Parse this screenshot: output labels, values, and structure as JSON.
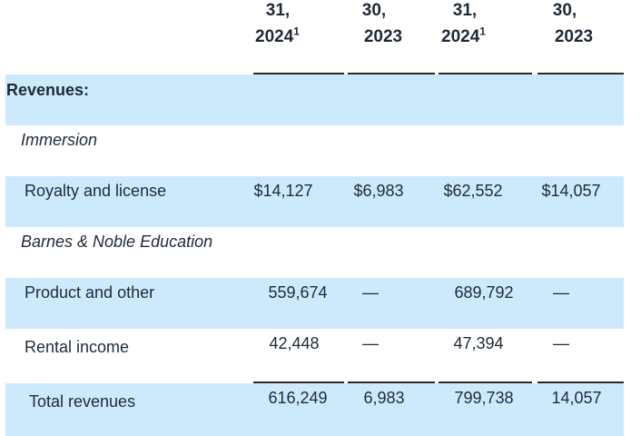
{
  "colors": {
    "band": "#cdeafd",
    "text": "#1f2a36",
    "rule": "#2a2a2a"
  },
  "columns": [
    {
      "line1": "31,",
      "year": "2024",
      "footnote": "1"
    },
    {
      "line1": "30,",
      "year": "2023",
      "footnote": ""
    },
    {
      "line1": "31,",
      "year": "2024",
      "footnote": "1"
    },
    {
      "line1": "30,",
      "year": "2023",
      "footnote": ""
    }
  ],
  "rows": {
    "revenues_header": {
      "label": "Revenues:"
    },
    "immersion": {
      "label": "Immersion"
    },
    "royalty": {
      "label": "Royalty and license",
      "values": [
        "$14,127",
        "$6,983",
        "$62,552",
        "$14,057"
      ]
    },
    "bne": {
      "label": "Barnes & Noble Education"
    },
    "product": {
      "label": "Product and other",
      "values": [
        "559,674",
        "—",
        "689,792",
        "—"
      ]
    },
    "rental": {
      "label": "Rental income",
      "values": [
        "42,448",
        "—",
        "47,394",
        "—"
      ]
    },
    "total": {
      "label": "Total revenues",
      "values": [
        "616,249",
        "6,983",
        "799,738",
        "14,057"
      ]
    }
  }
}
